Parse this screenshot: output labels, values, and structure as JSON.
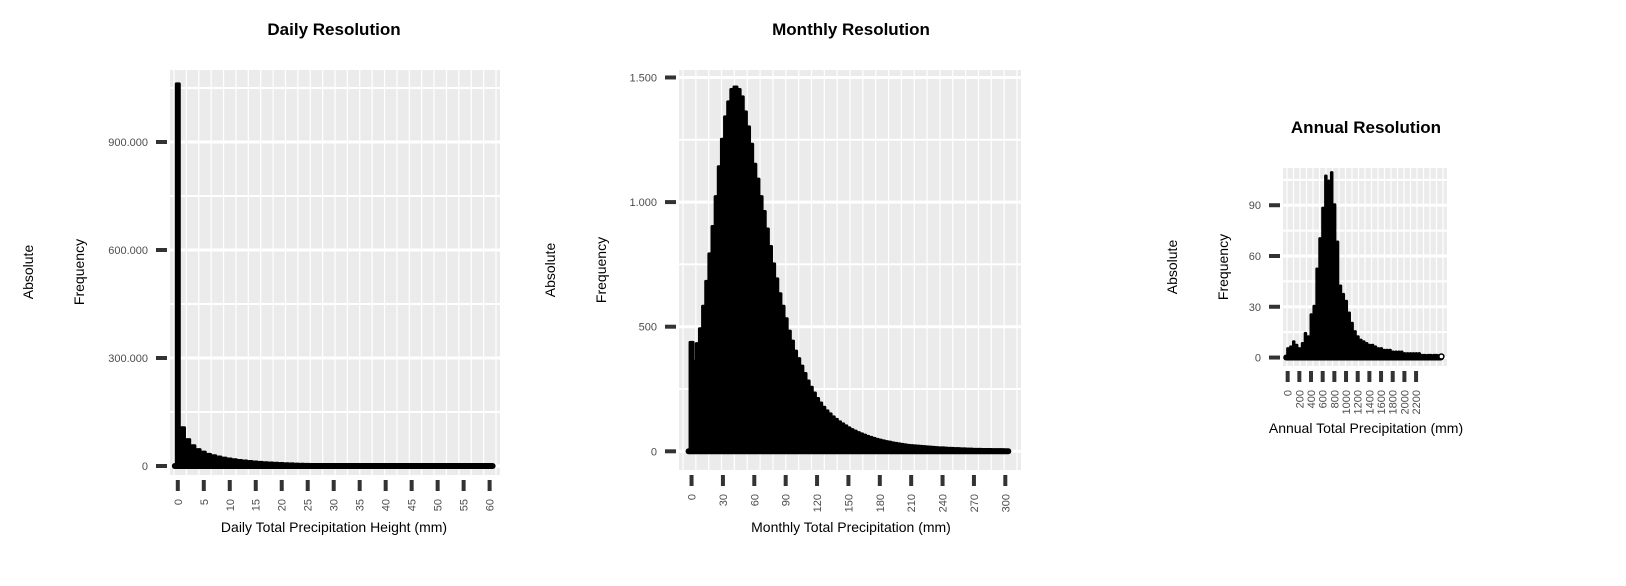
{
  "chart_data": [
    {
      "type": "bar",
      "title": "Daily Resolution",
      "xlabel": "Daily Total Precipitation Height (mm)",
      "ylabel_outer": "Absolute",
      "ylabel": "Frequency",
      "xlim": [
        -1.5,
        62
      ],
      "ylim": [
        -25000,
        1100000
      ],
      "xticks": [
        0,
        5,
        10,
        15,
        20,
        25,
        30,
        35,
        40,
        45,
        50,
        55,
        60
      ],
      "xtick_labels": [
        "0",
        "5",
        "10",
        "15",
        "20",
        "25",
        "30",
        "35",
        "40",
        "45",
        "50",
        "55",
        "60"
      ],
      "yticks": [
        0,
        300000,
        600000,
        900000
      ],
      "ytick_labels": [
        "0",
        "300.000",
        "600.000",
        "900.000"
      ],
      "grid": true,
      "x": [
        0,
        1,
        2,
        3,
        4,
        5,
        6,
        7,
        8,
        9,
        10,
        11,
        12,
        13,
        14,
        15,
        16,
        17,
        18,
        19,
        20,
        21,
        22,
        23,
        24,
        25,
        26,
        27,
        28,
        29,
        30,
        31,
        32,
        33,
        34,
        35,
        36,
        37,
        38,
        39,
        40,
        41,
        42,
        43,
        44,
        45,
        46,
        47,
        48,
        49,
        50,
        51,
        52,
        53,
        54,
        55,
        56,
        57,
        58,
        59,
        60
      ],
      "values": [
        1060000,
        105000,
        72000,
        55000,
        44000,
        37000,
        31000,
        27000,
        23500,
        20500,
        18000,
        15800,
        14000,
        12400,
        11000,
        9800,
        8700,
        7700,
        6900,
        6200,
        5500,
        4900,
        4400,
        3900,
        3500,
        3100,
        2800,
        2500,
        2250,
        2000,
        1800,
        1600,
        1450,
        1300,
        1150,
        1050,
        950,
        850,
        760,
        690,
        620,
        560,
        500,
        450,
        410,
        370,
        330,
        300,
        270,
        245,
        220,
        200,
        180,
        160,
        145,
        130,
        118,
        106,
        95,
        86,
        78
      ]
    },
    {
      "type": "bar",
      "title": "Monthly Resolution",
      "xlabel": "Monthly Total Precipitation (mm)",
      "ylabel_outer": "Absolute",
      "ylabel": "Frequency",
      "xlim": [
        -12,
        315
      ],
      "ylim": [
        -75,
        1530
      ],
      "xticks": [
        0,
        30,
        60,
        90,
        120,
        150,
        180,
        210,
        240,
        270,
        300
      ],
      "xtick_labels": [
        "0",
        "30",
        "60",
        "90",
        "120",
        "150",
        "180",
        "210",
        "240",
        "270",
        "300"
      ],
      "yticks": [
        0,
        500,
        1000,
        1500
      ],
      "ytick_labels": [
        "0",
        "500",
        "1.000",
        "1.500"
      ],
      "grid": true,
      "x": [
        0,
        3,
        6,
        9,
        12,
        15,
        18,
        21,
        24,
        27,
        30,
        33,
        36,
        39,
        42,
        45,
        48,
        51,
        54,
        57,
        60,
        63,
        66,
        69,
        72,
        75,
        78,
        81,
        84,
        87,
        90,
        93,
        96,
        99,
        102,
        105,
        108,
        111,
        114,
        117,
        120,
        123,
        126,
        129,
        132,
        135,
        138,
        141,
        144,
        147,
        150,
        153,
        156,
        159,
        162,
        165,
        168,
        171,
        174,
        177,
        180,
        183,
        186,
        189,
        192,
        195,
        198,
        201,
        204,
        207,
        210,
        213,
        216,
        219,
        222,
        225,
        228,
        231,
        234,
        237,
        240,
        243,
        246,
        249,
        252,
        255,
        258,
        261,
        264,
        267,
        270,
        273,
        276,
        279,
        282,
        285,
        288,
        291,
        294,
        297,
        300
      ],
      "values": [
        435,
        360,
        430,
        490,
        580,
        680,
        790,
        900,
        1020,
        1140,
        1250,
        1340,
        1400,
        1450,
        1460,
        1450,
        1420,
        1360,
        1300,
        1230,
        1150,
        1090,
        1020,
        960,
        890,
        820,
        750,
        690,
        630,
        580,
        530,
        480,
        440,
        400,
        370,
        340,
        310,
        280,
        255,
        232,
        210,
        192,
        175,
        160,
        148,
        136,
        126,
        116,
        108,
        100,
        92,
        85,
        79,
        73,
        68,
        63,
        58,
        54,
        50,
        46,
        43,
        40,
        37,
        35,
        32,
        30,
        28,
        26,
        24,
        22,
        21,
        20,
        19,
        18,
        17,
        16,
        15,
        14,
        13,
        12,
        12,
        11,
        10,
        10,
        9,
        9,
        8,
        8,
        7,
        7,
        6,
        6,
        6,
        5,
        5,
        5,
        4,
        4,
        4,
        4,
        3
      ]
    },
    {
      "type": "bar",
      "title": "Annual Resolution",
      "xlabel": "Annual Total Precipitation (mm)",
      "ylabel_outer": "Absolute",
      "ylabel": "Frequency",
      "xlim": [
        -80,
        2730
      ],
      "ylim": [
        -5,
        112
      ],
      "xticks": [
        0,
        200,
        400,
        600,
        800,
        1000,
        1200,
        1400,
        1600,
        1800,
        2000,
        2200
      ],
      "xtick_labels": [
        "0",
        "200",
        "400",
        "600",
        "800",
        "1000",
        "1200",
        "1400",
        "1600",
        "1800",
        "2000",
        "2200"
      ],
      "yticks": [
        0,
        30,
        60,
        90
      ],
      "ytick_labels": [
        "0",
        "30",
        "60",
        "90"
      ],
      "grid": true,
      "x": [
        0,
        50,
        100,
        150,
        200,
        250,
        300,
        350,
        400,
        450,
        500,
        550,
        600,
        650,
        700,
        750,
        800,
        850,
        900,
        950,
        1000,
        1050,
        1100,
        1150,
        1200,
        1250,
        1300,
        1350,
        1400,
        1450,
        1500,
        1550,
        1600,
        1650,
        1700,
        1750,
        1800,
        1850,
        1900,
        1950,
        2000,
        2050,
        2100,
        2150,
        2200,
        2250,
        2300,
        2400,
        2500,
        2600
      ],
      "values": [
        5,
        6,
        9,
        7,
        5,
        8,
        14,
        12,
        25,
        30,
        52,
        70,
        88,
        107,
        104,
        109,
        90,
        68,
        42,
        37,
        33,
        26,
        20,
        15,
        12,
        10,
        9,
        8,
        7,
        7,
        6,
        5,
        5,
        4,
        4,
        4,
        3,
        3,
        3,
        3,
        2,
        2,
        2,
        2,
        2,
        2,
        1,
        1,
        1,
        1
      ]
    }
  ]
}
